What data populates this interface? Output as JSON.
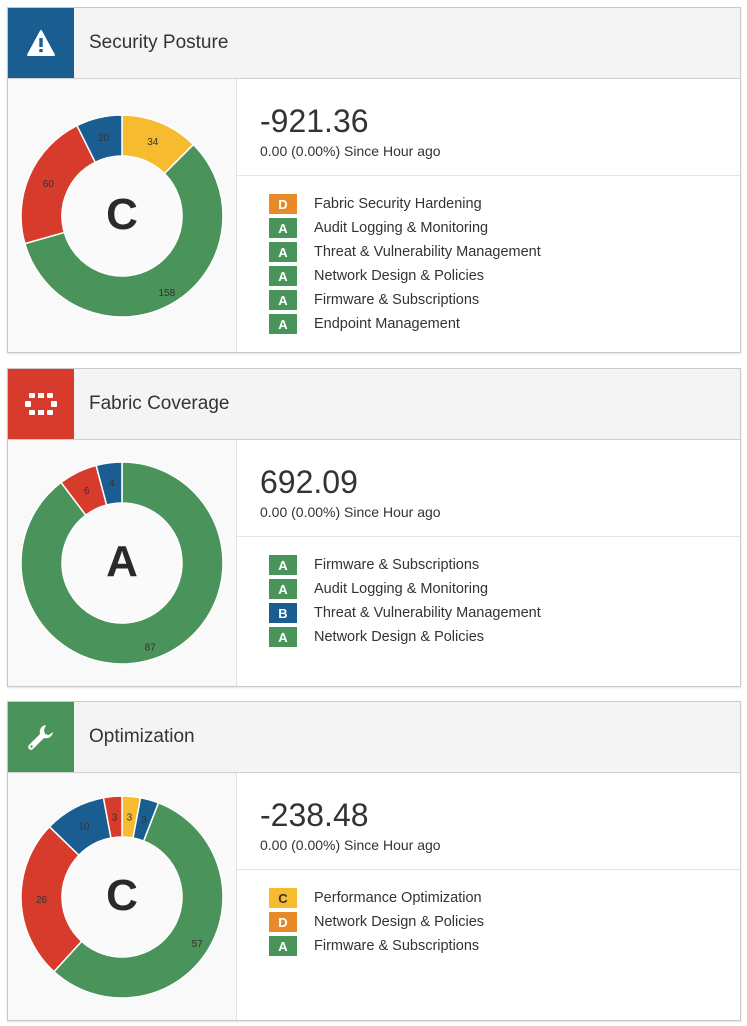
{
  "colors": {
    "A": "#4a935a",
    "B": "#1a5d91",
    "C": "#f6bb2e",
    "D": "#e8892a",
    "F": "#d63b2b"
  },
  "cards": [
    {
      "title": "Security Posture",
      "icon": "warning-triangle-icon",
      "icon_bg": "#1a5d91",
      "value": "-921.36",
      "change": "0.00 (0.00%) Since Hour ago",
      "grade": "C",
      "segments": [
        {
          "value": 34,
          "color": "#f6bb2e"
        },
        {
          "value": 158,
          "color": "#4a935a"
        },
        {
          "value": 60,
          "color": "#d63b2b"
        },
        {
          "value": 20,
          "color": "#1a5d91"
        }
      ],
      "items": [
        {
          "grade": "D",
          "label": "Fabric Security Hardening"
        },
        {
          "grade": "A",
          "label": "Audit Logging & Monitoring"
        },
        {
          "grade": "A",
          "label": "Threat & Vulnerability Management"
        },
        {
          "grade": "A",
          "label": "Network Design & Policies"
        },
        {
          "grade": "A",
          "label": "Firmware & Subscriptions"
        },
        {
          "grade": "A",
          "label": "Endpoint Management"
        }
      ]
    },
    {
      "title": "Fabric Coverage",
      "icon": "security-fabric-icon",
      "icon_bg": "#d63b2b",
      "value": "692.09",
      "change": "0.00 (0.00%) Since Hour ago",
      "grade": "A",
      "segments": [
        {
          "value": 87,
          "color": "#4a935a"
        },
        {
          "value": 6,
          "color": "#d63b2b"
        },
        {
          "value": 4,
          "color": "#1a5d91"
        }
      ],
      "items": [
        {
          "grade": "A",
          "label": "Firmware & Subscriptions"
        },
        {
          "grade": "A",
          "label": "Audit Logging & Monitoring"
        },
        {
          "grade": "B",
          "label": "Threat & Vulnerability Management"
        },
        {
          "grade": "A",
          "label": "Network Design & Policies"
        }
      ]
    },
    {
      "title": "Optimization",
      "icon": "wrench-icon",
      "icon_bg": "#4a935a",
      "value": "-238.48",
      "change": "0.00 (0.00%) Since Hour ago",
      "grade": "C",
      "segments": [
        {
          "value": 3,
          "color": "#f6bb2e"
        },
        {
          "value": 3,
          "color": "#1a5d91"
        },
        {
          "value": 57,
          "color": "#4a935a"
        },
        {
          "value": 26,
          "color": "#d63b2b"
        },
        {
          "value": 10,
          "color": "#1a5d91"
        },
        {
          "value": 3,
          "color": "#d63b2b"
        }
      ],
      "items": [
        {
          "grade": "C",
          "label": "Performance Optimization"
        },
        {
          "grade": "D",
          "label": "Network Design & Policies"
        },
        {
          "grade": "A",
          "label": "Firmware & Subscriptions"
        }
      ]
    }
  ]
}
